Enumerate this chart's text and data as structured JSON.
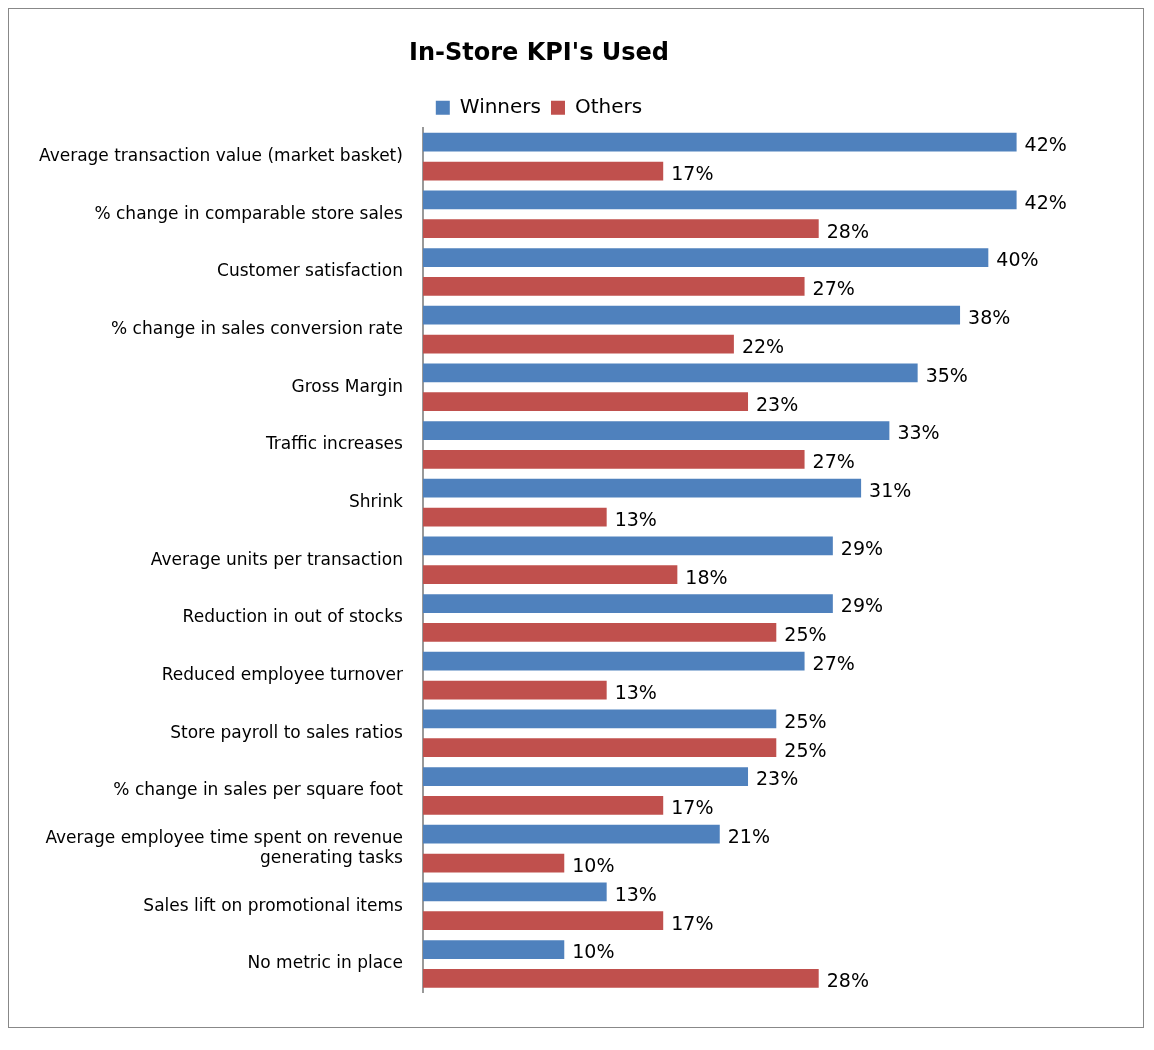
{
  "chart_data": {
    "type": "bar",
    "orientation": "horizontal",
    "title": "In-Store KPI's Used",
    "legend": "top",
    "grid": false,
    "categories": [
      "Average transaction value (market basket)",
      "% change in comparable store sales",
      "Customer satisfaction",
      "% change in sales conversion rate",
      "Gross Margin",
      "Traffic increases",
      "Shrink",
      "Average units per transaction",
      "Reduction in out of stocks",
      "Reduced employee turnover",
      "Store payroll to sales ratios",
      "% change in sales per square foot",
      "Average employee time spent on revenue generating tasks",
      "Sales lift on promotional items",
      "No metric in place"
    ],
    "series": [
      {
        "name": "Winners",
        "color": "#4f81bd",
        "values": [
          42,
          42,
          40,
          38,
          35,
          33,
          31,
          29,
          29,
          27,
          25,
          23,
          21,
          13,
          10
        ],
        "value_labels": [
          "42%",
          "42%",
          "40%",
          "38%",
          "35%",
          "33%",
          "31%",
          "29%",
          "29%",
          "27%",
          "25%",
          "23%",
          "21%",
          "13%",
          "10%"
        ]
      },
      {
        "name": "Others",
        "color": "#c0504d",
        "values": [
          17,
          28,
          27,
          22,
          23,
          27,
          13,
          18,
          25,
          13,
          25,
          17,
          10,
          17,
          28
        ],
        "value_labels": [
          "17%",
          "28%",
          "27%",
          "22%",
          "23%",
          "27%",
          "13%",
          "18%",
          "25%",
          "13%",
          "25%",
          "17%",
          "10%",
          "17%",
          "28%"
        ]
      }
    ]
  }
}
